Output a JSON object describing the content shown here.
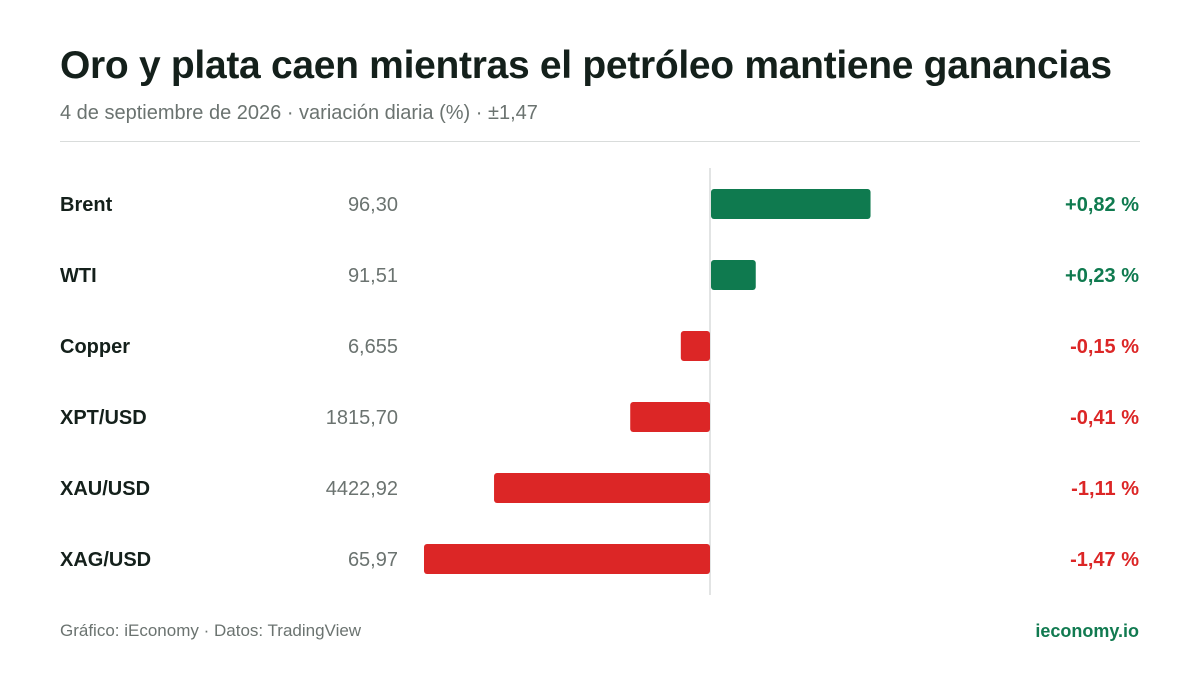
{
  "title": "Oro y plata caen mientras el petróleo mantiene ganancias",
  "subtitle": "4 de septiembre de 2026 · variación diaria (%) · ±1,47",
  "footer": {
    "source": "Gráfico: iEconomy · Datos: TradingView",
    "brand": "ieconomy.io"
  },
  "colors": {
    "positive": "#0f7a4f",
    "negative": "#dc2626",
    "label": "#14201b",
    "price": "#6b7370",
    "axis": "#d9dcdb"
  },
  "chart_data": {
    "type": "bar",
    "orientation": "horizontal",
    "scale_max_abs": 1.47,
    "categories": [
      "Brent",
      "WTI",
      "Copper",
      "XPT/USD",
      "XAU/USD",
      "XAG/USD"
    ],
    "prices": [
      "96,30",
      "91,51",
      "6,655",
      "1815,70",
      "4422,92",
      "65,97"
    ],
    "values": [
      0.82,
      0.23,
      -0.15,
      -0.41,
      -1.11,
      -1.47
    ],
    "value_labels": [
      "+0,82 %",
      "+0,23 %",
      "-0,15 %",
      "-0,41 %",
      "-1,11 %",
      "-1,47 %"
    ]
  }
}
